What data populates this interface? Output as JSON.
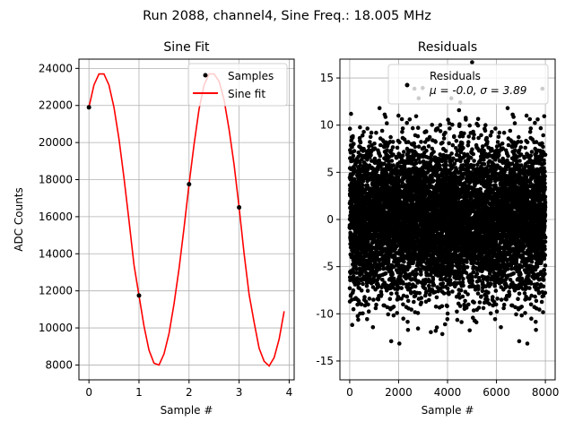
{
  "figure": {
    "suptitle": "Run 2088, channel4, Sine Freq.: 18.005 MHz"
  },
  "chart_data": [
    {
      "type": "line",
      "title": "Sine Fit",
      "xlabel": "Sample #",
      "ylabel": "ADC Counts",
      "xlim": [
        -0.2,
        4.1
      ],
      "ylim": [
        7200,
        24500
      ],
      "xticks": [
        0,
        1,
        2,
        3,
        4
      ],
      "yticks": [
        8000,
        10000,
        12000,
        14000,
        16000,
        18000,
        20000,
        22000,
        24000
      ],
      "grid": true,
      "legend_position": "top-right",
      "samples": {
        "name": "Samples",
        "color": "#000000",
        "x": [
          0,
          1,
          2,
          3
        ],
        "y": [
          21900,
          11750,
          17750,
          16500
        ]
      },
      "fit": {
        "name": "Sine fit",
        "color": "#ff0000",
        "x": [
          0,
          0.1,
          0.2,
          0.3,
          0.4,
          0.5,
          0.6,
          0.7,
          0.8,
          0.9,
          1.0,
          1.1,
          1.2,
          1.3,
          1.4,
          1.5,
          1.6,
          1.7,
          1.8,
          1.9,
          2.0,
          2.1,
          2.2,
          2.3,
          2.4,
          2.5,
          2.6,
          2.7,
          2.8,
          2.9,
          3.0,
          3.1,
          3.2,
          3.3,
          3.4,
          3.5,
          3.6,
          3.7,
          3.8,
          3.9
        ],
        "y": [
          21900,
          23100,
          23700,
          23700,
          23100,
          21900,
          20200,
          18100,
          15800,
          13400,
          11750,
          10100,
          8800,
          8100,
          8000,
          8600,
          9700,
          11300,
          13200,
          15400,
          17750,
          19900,
          21800,
          23100,
          23700,
          23700,
          23300,
          22300,
          20700,
          18800,
          16500,
          14000,
          11800,
          10300,
          8900,
          8200,
          7950,
          8400,
          9400,
          10900
        ]
      }
    },
    {
      "type": "scatter",
      "title": "Residuals",
      "xlabel": "Sample #",
      "ylabel": "",
      "xlim": [
        -400,
        8400
      ],
      "ylim": [
        -17,
        17
      ],
      "xticks": [
        0,
        2000,
        4000,
        6000,
        8000
      ],
      "yticks": [
        -15,
        -10,
        -5,
        0,
        5,
        10,
        15
      ],
      "grid": true,
      "legend_position": "top-right",
      "series": [
        {
          "name": "Residuals",
          "color": "#000000",
          "n_points": 8000,
          "x_range": [
            0,
            7999
          ],
          "mean": -0.0,
          "std": 3.89
        }
      ],
      "legend_stats": {
        "mu_label": "μ = -0.0, ",
        "sigma_label": "σ = 3.89"
      }
    }
  ]
}
